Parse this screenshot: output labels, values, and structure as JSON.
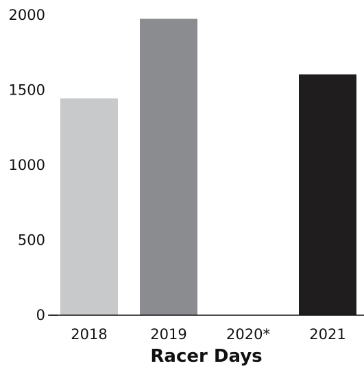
{
  "chart_data": {
    "type": "bar",
    "title": "",
    "xlabel": "Racer Days",
    "ylabel": "",
    "categories": [
      "2018",
      "2019",
      "2020*",
      "2021"
    ],
    "values": [
      1445,
      1975,
      0,
      1605
    ],
    "colors": [
      "#c8c9cb",
      "#8b8c8f",
      "#cccccc",
      "#1f1d1e"
    ],
    "yticks": [
      0,
      500,
      1000,
      1500,
      2000
    ],
    "ylim": [
      0,
      2000
    ],
    "grid": false,
    "legend": "none"
  }
}
